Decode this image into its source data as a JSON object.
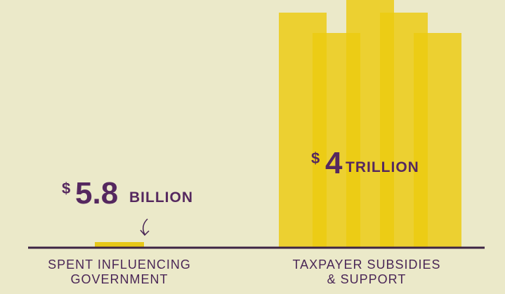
{
  "items": [
    {
      "currency": "$",
      "amount": "5.8",
      "unit": "BILLION",
      "label_lines": [
        "SPENT INFLUENCING",
        "GOVERNMENT"
      ]
    },
    {
      "currency": "$",
      "amount": "4",
      "unit": "TRILLION",
      "label_lines": [
        "TAXPAYER SUBSIDIES",
        "& SUPPORT"
      ]
    }
  ]
}
